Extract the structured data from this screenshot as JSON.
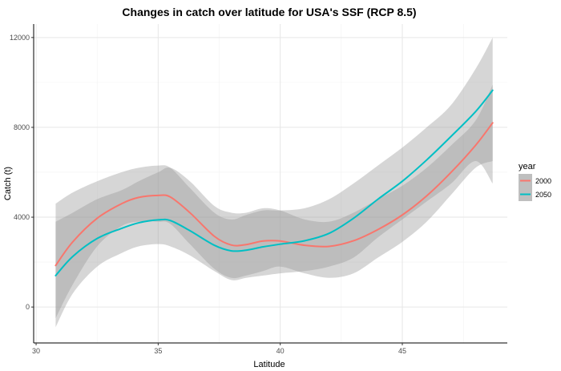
{
  "chart_data": {
    "type": "line",
    "title": "Changes in catch over latitude for USA's SSF (RCP 8.5)",
    "xlabel": "Latitude",
    "ylabel": "Catch (t)",
    "xlim": [
      29.9,
      49.3
    ],
    "ylim": [
      -1600,
      12600
    ],
    "xticks": [
      30,
      35,
      40,
      45
    ],
    "yticks": [
      0,
      4000,
      8000,
      12000
    ],
    "grid": true,
    "legend": {
      "title": "year",
      "placement": "right"
    },
    "series": [
      {
        "name": "2000",
        "color": "#F8766D",
        "x": [
          30.8,
          31.5,
          32.5,
          33.5,
          34.2,
          35.0,
          35.5,
          36.3,
          37.3,
          38.0,
          38.6,
          39.3,
          40.0,
          41.0,
          42.0,
          43.0,
          44.0,
          45.0,
          46.0,
          47.0,
          48.0,
          48.7
        ],
        "y": [
          1850,
          2900,
          3950,
          4600,
          4880,
          4970,
          4900,
          4200,
          3150,
          2760,
          2780,
          2940,
          2940,
          2750,
          2700,
          2950,
          3450,
          4100,
          4950,
          6000,
          7200,
          8200
        ],
        "lower": [
          -500,
          1000,
          2700,
          3600,
          3800,
          3800,
          3700,
          2800,
          1700,
          1300,
          1400,
          1600,
          1800,
          1500,
          1300,
          1500,
          2200,
          2900,
          3800,
          5000,
          6200,
          6500
        ],
        "upper": [
          3800,
          4200,
          4800,
          5200,
          5600,
          6000,
          6200,
          5600,
          4500,
          4200,
          4200,
          4400,
          4300,
          3900,
          3800,
          4200,
          4800,
          5400,
          6200,
          7200,
          8300,
          9900
        ]
      },
      {
        "name": "2050",
        "color": "#00BFC4",
        "x": [
          30.8,
          31.5,
          32.5,
          33.5,
          34.2,
          35.0,
          35.5,
          36.3,
          37.3,
          38.0,
          38.6,
          39.3,
          40.0,
          41.0,
          42.0,
          43.0,
          44.0,
          45.0,
          46.0,
          47.0,
          48.0,
          48.7
        ],
        "y": [
          1400,
          2250,
          3050,
          3500,
          3750,
          3880,
          3850,
          3400,
          2750,
          2500,
          2530,
          2680,
          2800,
          2950,
          3280,
          3950,
          4800,
          5600,
          6550,
          7600,
          8700,
          9650
        ],
        "lower": [
          -900,
          600,
          1800,
          2400,
          2700,
          2800,
          2700,
          2300,
          1600,
          1200,
          1300,
          1400,
          1500,
          1600,
          1800,
          2200,
          3100,
          3900,
          4700,
          5500,
          6500,
          5500
        ],
        "upper": [
          4600,
          5100,
          5600,
          6000,
          6200,
          6300,
          6200,
          5300,
          4200,
          3900,
          4100,
          4300,
          4300,
          4400,
          4800,
          5500,
          6300,
          7100,
          8000,
          9000,
          10600,
          12000
        ]
      }
    ]
  }
}
